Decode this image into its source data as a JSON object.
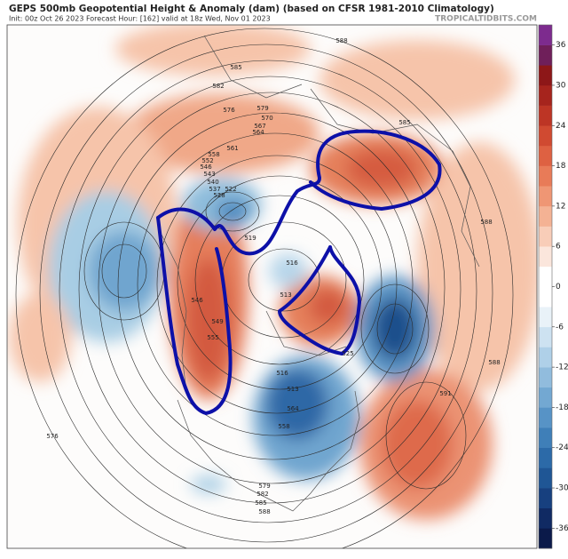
{
  "header": {
    "title": "GEPS 500mb Geopotential Height & Anomaly (dam) (based on CFSR 1981-2010 Climatology)",
    "subtitle": "Init: 00z Oct 26 2023   Forecast Hour: [162]   valid at 18z Wed, Nov 01 2023",
    "site": "TROPICALTIDBITS.COM"
  },
  "colorbar": {
    "range": [
      -39,
      39
    ],
    "ticks": [
      36,
      30,
      24,
      18,
      12,
      6,
      0,
      -6,
      -12,
      -18,
      -24,
      -30,
      -36
    ],
    "colors": [
      "#0b1a4a",
      "#102a63",
      "#17407f",
      "#1f5695",
      "#2c6aa8",
      "#3f7fb8",
      "#5793c6",
      "#73a8d2",
      "#91bcdd",
      "#afd0e8",
      "#cde2f1",
      "#e9f2f8",
      "#ffffff",
      "#ffffff",
      "#fbe6dc",
      "#f8cdb8",
      "#f4b294",
      "#ef9674",
      "#e87b58",
      "#de6142",
      "#d04a31",
      "#bd3525",
      "#a6241d",
      "#8d1718",
      "#6f1f5a",
      "#7d2b8e"
    ]
  },
  "contour_labels": [
    "588",
    "585",
    "582",
    "576",
    "579",
    "570",
    "567",
    "564",
    "561",
    "558",
    "552",
    "546",
    "543",
    "540",
    "537",
    "528",
    "522",
    "519",
    "516",
    "513",
    "549",
    "546",
    "555",
    "525",
    "585",
    "588",
    "591",
    "588",
    "576",
    "579",
    "582",
    "585",
    "588",
    "564",
    "558",
    "513",
    "516"
  ]
}
